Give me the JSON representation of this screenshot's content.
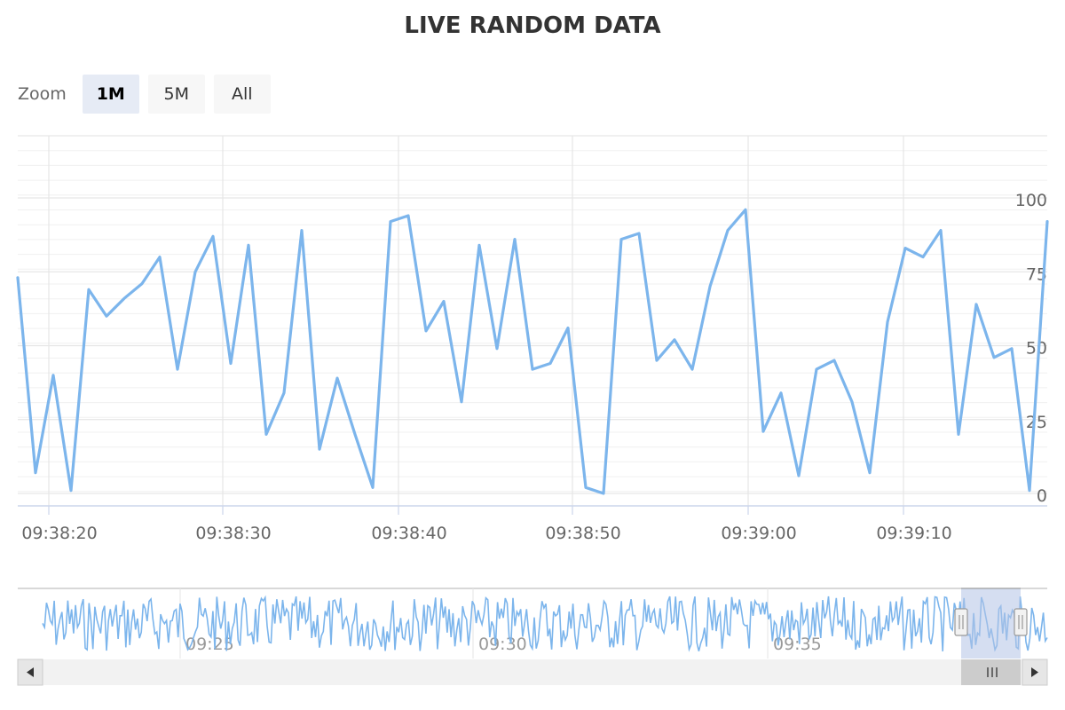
{
  "chart_title": "LIVE RANDOM DATA",
  "range_selector": {
    "label": "Zoom",
    "buttons": [
      {
        "label": "1M",
        "active": true
      },
      {
        "label": "5M",
        "active": false
      },
      {
        "label": "All",
        "active": false
      }
    ]
  },
  "navigator": {
    "tick_labels": [
      "09:25",
      "09:30",
      "09:35"
    ]
  },
  "colors": {
    "series": "#7cb5ec",
    "grid": "#e6e6e6",
    "axis_text": "#666666",
    "navigator_mask": "#b3c3e6",
    "scrollbar_track": "#f2f2f2",
    "scrollbar_thumb": "#cccccc"
  },
  "chart_data": {
    "type": "line",
    "title": "LIVE RANDOM DATA",
    "x_tick_labels": [
      "09:38:20",
      "09:38:30",
      "09:38:40",
      "09:38:50",
      "09:39:00",
      "09:39:10"
    ],
    "y_tick_labels": [
      "0",
      "25",
      "50",
      "75",
      "100"
    ],
    "ylim": [
      0,
      100
    ],
    "grid": true,
    "series": [
      {
        "values": [
          73,
          7,
          40,
          1,
          69,
          60,
          66,
          71,
          80,
          42,
          75,
          87,
          44,
          84,
          20,
          34,
          89,
          15,
          39,
          20,
          2,
          92,
          94,
          55,
          65,
          31,
          84,
          49,
          86,
          42,
          44,
          56,
          2,
          0,
          86,
          88,
          45,
          52,
          42,
          70,
          89,
          96,
          21,
          34,
          6,
          42,
          45,
          31,
          7,
          58,
          83,
          80,
          89,
          20,
          64,
          46,
          49,
          1,
          92
        ]
      }
    ]
  }
}
